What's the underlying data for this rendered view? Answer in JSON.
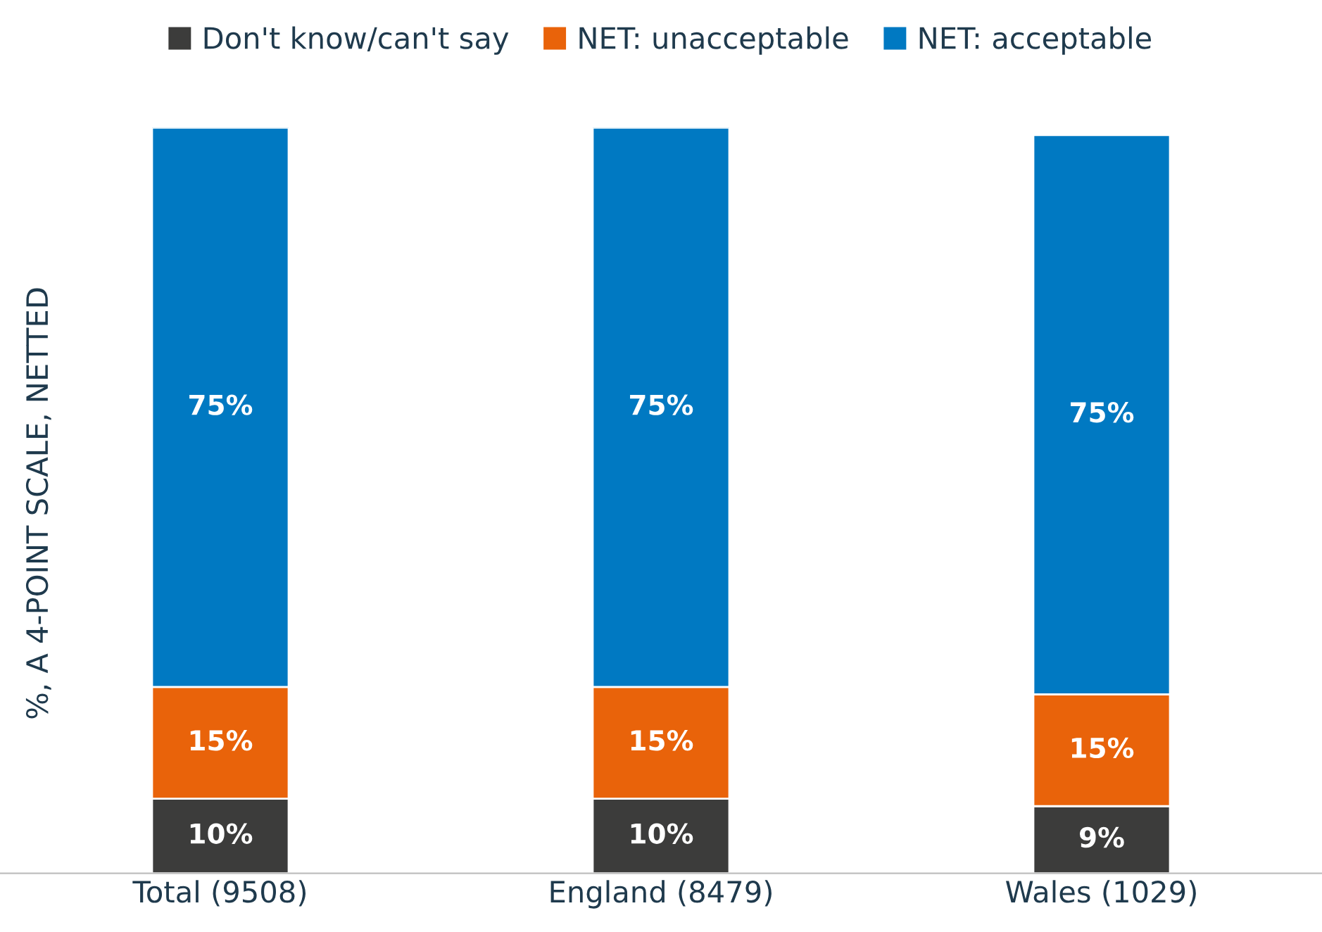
{
  "chart_data": {
    "type": "bar",
    "stacked": true,
    "ylabel": "%, A 4-POINT SCALE, NETTED",
    "categories": [
      "Total (9508)",
      "England (8479)",
      "Wales (1029)"
    ],
    "series": [
      {
        "name": "Don't know/can't say",
        "color": "#3c3c3b",
        "values": [
          10,
          10,
          9
        ],
        "value_labels": [
          "10%",
          "10%",
          "9%"
        ]
      },
      {
        "name": "NET: unacceptable",
        "color": "#e9630a",
        "values": [
          15,
          15,
          15
        ],
        "value_labels": [
          "15%",
          "15%",
          "15%"
        ]
      },
      {
        "name": "NET: acceptable",
        "color": "#0079c2",
        "values": [
          75,
          75,
          75
        ],
        "value_labels": [
          "75%",
          "75%",
          "75%"
        ]
      }
    ],
    "legend": "top",
    "grid": false
  }
}
